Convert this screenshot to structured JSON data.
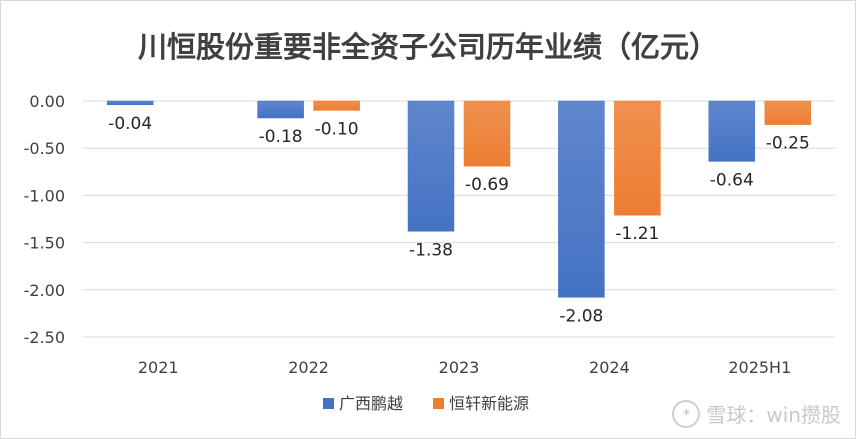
{
  "chart_data": {
    "type": "bar",
    "title": "川恒股份重要非全资子公司历年业绩（亿元）",
    "categories": [
      "2021",
      "2022",
      "2023",
      "2024",
      "2025H1"
    ],
    "series": [
      {
        "name": "广西鹏越",
        "color": "#4472C4",
        "values": [
          -0.04,
          -0.18,
          -1.38,
          -2.08,
          -0.64
        ]
      },
      {
        "name": "恒轩新能源",
        "color": "#ED7D31",
        "values": [
          null,
          -0.1,
          -0.69,
          -1.21,
          -0.25
        ]
      }
    ],
    "data_labels": [
      [
        "-0.04",
        "-0.18",
        "-1.38",
        "-2.08",
        "-0.64"
      ],
      [
        "",
        "-0.10",
        "-0.69",
        "-1.21",
        "-0.25"
      ]
    ],
    "yticks": [
      "0.00",
      "-0.50",
      "-1.00",
      "-1.50",
      "-2.00",
      "-2.50"
    ],
    "ytick_values": [
      0,
      -0.5,
      -1.0,
      -1.5,
      -2.0,
      -2.5
    ],
    "ylim": [
      -2.5,
      0
    ],
    "legend_position": "bottom",
    "xlabel": "",
    "ylabel": ""
  },
  "watermark": {
    "icon": "xueqiu-logo-icon",
    "text": "雪球：win攒股"
  }
}
